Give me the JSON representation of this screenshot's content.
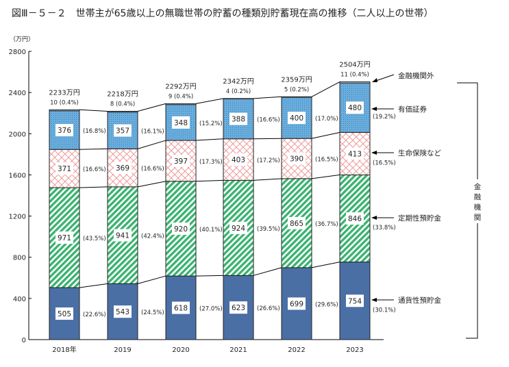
{
  "chart_data": {
    "type": "bar",
    "stacked": true,
    "title": "図Ⅲ－５－２　世帯主が65歳以上の無職世帯の貯蓄の種類別貯蓄現在高の推移（二人以上の世帯）",
    "yunit": "（万円）",
    "ylim": [
      0,
      2800
    ],
    "yticks": [
      0,
      400,
      800,
      1200,
      1600,
      2000,
      2400,
      2800
    ],
    "categories": [
      "2018年",
      "2019",
      "2020",
      "2021",
      "2022",
      "2023"
    ],
    "totals": [
      "2233万円",
      "2218万円",
      "2292万円",
      "2342万円",
      "2359万円",
      "2504万円"
    ],
    "total_values": [
      2233,
      2218,
      2292,
      2342,
      2359,
      2504
    ],
    "series": [
      {
        "name": "通貨性預貯金",
        "color": "#4a6fa5",
        "pattern": "solid",
        "values": [
          505,
          543,
          618,
          623,
          699,
          754
        ],
        "shares": [
          "(22.6%)",
          "(24.5%)",
          "(27.0%)",
          "(26.6%)",
          "(29.6%)",
          "(30.1%)"
        ]
      },
      {
        "name": "定期性預貯金",
        "color": "#3cb371",
        "pattern": "diagonal-stripes",
        "values": [
          971,
          941,
          920,
          924,
          865,
          846
        ],
        "shares": [
          "(43.5%)",
          "(42.4%)",
          "(40.1%)",
          "(39.5%)",
          "(36.7%)",
          "(33.8%)"
        ]
      },
      {
        "name": "生命保険など",
        "color": "#f2a0a0",
        "pattern": "crosshatch",
        "values": [
          371,
          369,
          397,
          403,
          390,
          413
        ],
        "shares": [
          "(16.6%)",
          "(16.6%)",
          "(17.3%)",
          "(17.2%)",
          "(16.5%)",
          "(16.5%)"
        ]
      },
      {
        "name": "有価証券",
        "color": "#6aaede",
        "pattern": "dots",
        "values": [
          376,
          357,
          348,
          388,
          400,
          480
        ],
        "shares": [
          "(16.8%)",
          "(16.1%)",
          "(15.2%)",
          "(16.6%)",
          "(17.0%)",
          "(19.2%)"
        ]
      },
      {
        "name": "金融機関外",
        "color": "#ffffff",
        "pattern": "none",
        "values": [
          10,
          8,
          9,
          4,
          5,
          11
        ],
        "labels": [
          "10 (0.4%)",
          "8 (0.4%)",
          "9 (0.4%)",
          "4 (0.2%)",
          "5 (0.2%)",
          "11 (0.4%)"
        ]
      }
    ],
    "bracket_label": "金融機関",
    "grid": false
  }
}
